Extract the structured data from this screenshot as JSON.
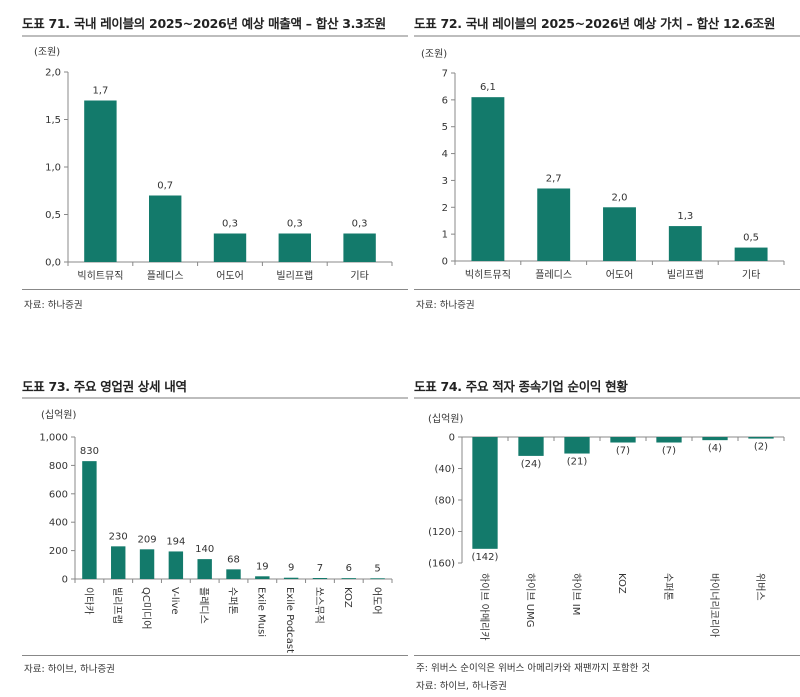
{
  "colors": {
    "bar": "#137a6b",
    "axis": "#888888"
  },
  "chart_data": [
    {
      "id": "c71",
      "type": "bar",
      "title": "도표 71. 국내 레이블의 2025~2026년 예상 매출액 – 합산 3.3조원",
      "unit": "(조원)",
      "categories": [
        "빅히트뮤직",
        "플레디스",
        "어도어",
        "빌리프랩",
        "기타"
      ],
      "values": [
        1.7,
        0.7,
        0.3,
        0.3,
        0.3
      ],
      "labels": [
        "1,7",
        "0,7",
        "0,3",
        "0,3",
        "0,3"
      ],
      "ylim": [
        0,
        2.0
      ],
      "yticks": [
        0,
        0.5,
        1.0,
        1.5,
        2.0
      ],
      "ytick_labels": [
        "0,0",
        "0,5",
        "1,0",
        "1,5",
        "2,0"
      ],
      "source": "자료: 하나증권",
      "grid": false
    },
    {
      "id": "c72",
      "type": "bar",
      "title": "도표 72. 국내 레이블의 2025~2026년 예상 가치 – 합산 12.6조원",
      "unit": "(조원)",
      "categories": [
        "빅히트뮤직",
        "플레디스",
        "어도어",
        "빌리프랩",
        "기타"
      ],
      "values": [
        6.1,
        2.7,
        2.0,
        1.3,
        0.5
      ],
      "labels": [
        "6,1",
        "2,7",
        "2,0",
        "1,3",
        "0,5"
      ],
      "ylim": [
        0,
        7
      ],
      "yticks": [
        0,
        1,
        2,
        3,
        4,
        5,
        6,
        7
      ],
      "ytick_labels": [
        "0",
        "1",
        "2",
        "3",
        "4",
        "5",
        "6",
        "7"
      ],
      "source": "자료: 하나증권",
      "grid": false
    },
    {
      "id": "c73",
      "type": "bar",
      "title": "도표 73. 주요 영업권 상세 내역",
      "unit": "(십억원)",
      "categories": [
        "이타카",
        "빌리프랩",
        "QC미디어",
        "V-live",
        "플레디스",
        "수퍼톤",
        "Exile Musi",
        "Exile Podcast",
        "쏘스뮤직",
        "KOZ",
        "어도어"
      ],
      "values": [
        830,
        230,
        209,
        194,
        140,
        68,
        19,
        9,
        7,
        6,
        5
      ],
      "labels": [
        "830",
        "230",
        "209",
        "194",
        "140",
        "68",
        "19",
        "9",
        "7",
        "6",
        "5"
      ],
      "ylim": [
        0,
        1000
      ],
      "yticks": [
        0,
        200,
        400,
        600,
        800,
        1000
      ],
      "ytick_labels": [
        "0",
        "200",
        "400",
        "600",
        "800",
        "1,000"
      ],
      "source": "자료: 하이브, 하나증권",
      "grid": false
    },
    {
      "id": "c74",
      "type": "bar",
      "title": "도표 74. 주요 적자 종속기업 순이익 현황",
      "unit": "(십억원)",
      "categories": [
        "하이브 아메리카",
        "하이브 UMG",
        "하이브 IM",
        "KOZ",
        "수퍼톤",
        "바이너리코리아",
        "위버스"
      ],
      "values": [
        -142,
        -24,
        -21,
        -7,
        -7,
        -4,
        -2
      ],
      "labels": [
        "(142)",
        "(24)",
        "(21)",
        "(7)",
        "(7)",
        "(4)",
        "(2)"
      ],
      "ylim": [
        -160,
        0
      ],
      "yticks": [
        0,
        -40,
        -80,
        -120,
        -160
      ],
      "ytick_labels": [
        "0",
        "(40)",
        "(80)",
        "(120)",
        "(160)"
      ],
      "note": "주: 위버스 순이익은 위버스 아메리카와 재팬까지 포함한 것",
      "source": "자료: 하이브, 하나증권",
      "grid": false
    }
  ]
}
